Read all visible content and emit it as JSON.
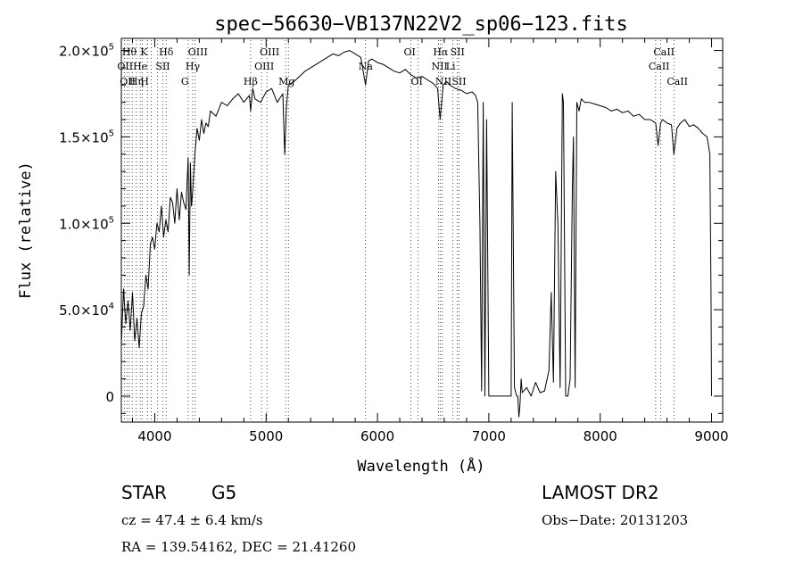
{
  "chart_data": {
    "type": "line",
    "title": "spec−56630−VB137N22V2_sp06−123.fits",
    "xlabel": "Wavelength (Å)",
    "ylabel": "Flux (relative)",
    "xlim": [
      3700,
      9100
    ],
    "ylim": [
      -15000,
      207000
    ],
    "x_ticks": [
      {
        "value": 4000,
        "label": "4000"
      },
      {
        "value": 5000,
        "label": "5000"
      },
      {
        "value": 6000,
        "label": "6000"
      },
      {
        "value": 7000,
        "label": "7000"
      },
      {
        "value": 8000,
        "label": "8000"
      },
      {
        "value": 9000,
        "label": "9000"
      }
    ],
    "y_ticks": [
      {
        "value": 0,
        "mantissa": "0",
        "exp": ""
      },
      {
        "value": 50000,
        "mantissa": "5.0×10",
        "exp": "4"
      },
      {
        "value": 100000,
        "mantissa": "1.0×10",
        "exp": "5"
      },
      {
        "value": 150000,
        "mantissa": "1.5×10",
        "exp": "5"
      },
      {
        "value": 200000,
        "mantissa": "2.0×10",
        "exp": "5"
      }
    ],
    "series": [
      {
        "x": [
          3700,
          3720,
          3740,
          3760,
          3780,
          3800,
          3820,
          3840,
          3860,
          3880,
          3900,
          3920,
          3940,
          3960,
          3980,
          4000,
          4020,
          4040,
          4060,
          4080,
          4100,
          4120,
          4140,
          4160,
          4180,
          4200,
          4220,
          4240,
          4260,
          4280,
          4300,
          4310,
          4320,
          4330,
          4340,
          4360,
          4380,
          4400,
          4420,
          4440,
          4460,
          4480,
          4500,
          4550,
          4600,
          4650,
          4700,
          4750,
          4800,
          4850,
          4861,
          4880,
          4900,
          4950,
          5000,
          5050,
          5100,
          5150,
          5167,
          5183,
          5200,
          5250,
          5300,
          5350,
          5400,
          5450,
          5500,
          5550,
          5600,
          5650,
          5700,
          5750,
          5800,
          5850,
          5893,
          5920,
          5950,
          6000,
          6050,
          6100,
          6150,
          6200,
          6250,
          6300,
          6350,
          6400,
          6450,
          6500,
          6540,
          6563,
          6590,
          6620,
          6650,
          6700,
          6750,
          6800,
          6850,
          6880,
          6900,
          6920,
          6935,
          6950,
          6965,
          6980,
          7000,
          7015,
          7030,
          7045,
          7060,
          7080,
          7120,
          7160,
          7200,
          7210,
          7230,
          7250,
          7260,
          7270,
          7280,
          7290,
          7300,
          7340,
          7380,
          7420,
          7460,
          7500,
          7540,
          7560,
          7580,
          7600,
          7620,
          7640,
          7660,
          7670,
          7690,
          7710,
          7730,
          7750,
          7760,
          7775,
          7790,
          7810,
          7830,
          7860,
          7900,
          7950,
          8000,
          8050,
          8100,
          8150,
          8200,
          8250,
          8300,
          8350,
          8400,
          8450,
          8498,
          8520,
          8542,
          8560,
          8600,
          8640,
          8662,
          8690,
          8720,
          8760,
          8800,
          8840,
          8880,
          8920,
          8960,
          8985,
          8995,
          9000
        ],
        "y": [
          30000,
          62000,
          42000,
          55000,
          38000,
          60000,
          32000,
          45000,
          28000,
          48000,
          52000,
          70000,
          62000,
          88000,
          92000,
          85000,
          100000,
          95000,
          110000,
          92000,
          102000,
          95000,
          115000,
          112000,
          100000,
          120000,
          102000,
          118000,
          112000,
          108000,
          138000,
          70000,
          135000,
          110000,
          118000,
          140000,
          155000,
          148000,
          160000,
          152000,
          158000,
          156000,
          165000,
          162000,
          170000,
          168000,
          172000,
          175000,
          170000,
          174000,
          165000,
          178000,
          172000,
          170000,
          176000,
          178000,
          170000,
          175000,
          140000,
          168000,
          180000,
          182000,
          185000,
          188000,
          190000,
          192000,
          194000,
          196000,
          198000,
          197000,
          199000,
          200000,
          198000,
          196000,
          180000,
          194000,
          195000,
          193000,
          192000,
          190000,
          188000,
          187000,
          189000,
          186000,
          184000,
          185000,
          183000,
          181000,
          178000,
          160000,
          180000,
          182000,
          180000,
          178000,
          177000,
          175000,
          176000,
          174000,
          170000,
          100000,
          3000,
          170000,
          0,
          160000,
          0,
          0,
          0,
          0,
          0,
          0,
          0,
          0,
          0,
          170000,
          5000,
          0,
          0,
          -12000,
          -5000,
          10000,
          2000,
          5000,
          0,
          8000,
          2000,
          3000,
          15000,
          60000,
          8000,
          130000,
          100000,
          5000,
          175000,
          170000,
          0,
          0,
          10000,
          120000,
          150000,
          5000,
          170000,
          165000,
          172000,
          170000,
          170000,
          169000,
          168000,
          167000,
          165000,
          166000,
          164000,
          165000,
          162000,
          163000,
          160000,
          160000,
          158000,
          145000,
          158000,
          160000,
          158000,
          157000,
          140000,
          155000,
          158000,
          160000,
          156000,
          157000,
          155000,
          152000,
          150000,
          140000,
          60000,
          0
        ]
      }
    ],
    "lines": [
      {
        "x": 3727,
        "label": "OII",
        "row": 1
      },
      {
        "x": 3750,
        "label": "OII",
        "row": 2
      },
      {
        "x": 3771,
        "label": "Hθ",
        "row": 0
      },
      {
        "x": 3798,
        "label": "",
        "row": -1
      },
      {
        "x": 3835,
        "label": "Hη",
        "row": 2
      },
      {
        "x": 3869,
        "label": "He",
        "row": 1
      },
      {
        "x": 3889,
        "label": "",
        "row": -1
      },
      {
        "x": 3934,
        "label": "K",
        "row": 0
      },
      {
        "x": 3934,
        "label": "H",
        "row": 2
      },
      {
        "x": 3968,
        "label": "",
        "row": -1
      },
      {
        "x": 4026,
        "label": "",
        "row": -1
      },
      {
        "x": 4072,
        "label": "SII",
        "row": 1
      },
      {
        "x": 4102,
        "label": "Hδ",
        "row": 0
      },
      {
        "x": 4300,
        "label": "G",
        "row": 2
      },
      {
        "x": 4340,
        "label": "Hγ",
        "row": 1
      },
      {
        "x": 4363,
        "label": "OIII",
        "row": 0
      },
      {
        "x": 4861,
        "label": "Hβ",
        "row": 2
      },
      {
        "x": 4959,
        "label": "OIII",
        "row": 1
      },
      {
        "x": 5007,
        "label": "OIII",
        "row": 0
      },
      {
        "x": 5175,
        "label": "Mg",
        "row": 2
      },
      {
        "x": 5200,
        "label": "",
        "row": -1
      },
      {
        "x": 5893,
        "label": "Na",
        "row": 1
      },
      {
        "x": 6300,
        "label": "OI",
        "row": 0
      },
      {
        "x": 6364,
        "label": "OI",
        "row": 2
      },
      {
        "x": 6548,
        "label": "NII",
        "row": 1
      },
      {
        "x": 6563,
        "label": "Hα",
        "row": 0
      },
      {
        "x": 6583,
        "label": "NII",
        "row": 2
      },
      {
        "x": 6678,
        "label": "Li",
        "row": 1
      },
      {
        "x": 6717,
        "label": "SII",
        "row": 0
      },
      {
        "x": 6731,
        "label": "SII",
        "row": 2
      },
      {
        "x": 8498,
        "label": "CaII",
        "row": 1
      },
      {
        "x": 8542,
        "label": "CaII",
        "row": 0
      },
      {
        "x": 8662,
        "label": "CaII",
        "row": 2
      }
    ]
  },
  "info": {
    "object_class": "STAR",
    "subclass": "G5",
    "survey": "LAMOST DR2",
    "cz": "cz = 47.4 ± 6.4 km/s",
    "obs_date": "Obs−Date: 20131203",
    "coords": "RA = 139.54162, DEC =  21.41260"
  }
}
